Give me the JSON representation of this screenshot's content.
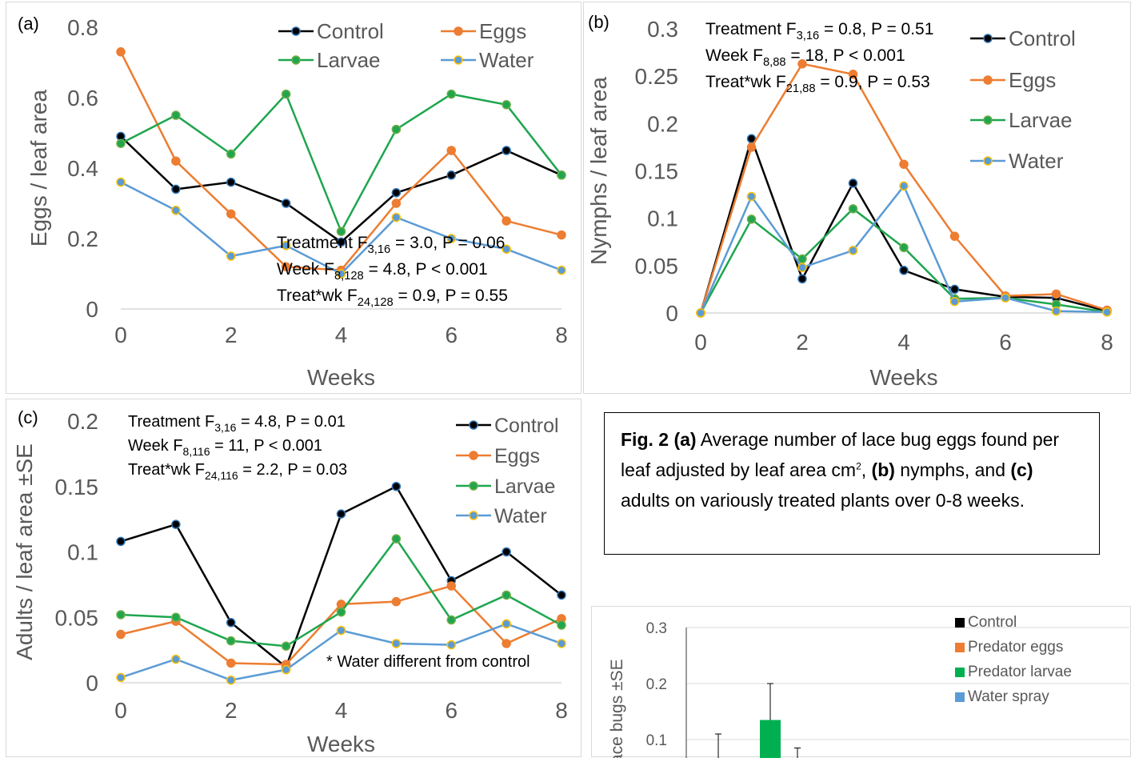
{
  "caption": {
    "fig_label": "Fig. 2",
    "a_label": "(a)",
    "text1": " Average number of lace bug eggs found per leaf adjusted by leaf area cm",
    "sup": "2",
    "text2": ", ",
    "b_label": "(b)",
    "text3": " nymphs, and ",
    "c_label": "(c)",
    "text4": " adults on variously treated plants over 0-8 weeks."
  },
  "colors": {
    "Control": "#000000",
    "Eggs": "#ed7d31",
    "Larvae": "#1fa64f",
    "Water": "#5b9bd5",
    "marker_stroke": {
      "Control": "#2e75b6",
      "Eggs": "#ed7d31",
      "Larvae": "#70ad47",
      "Water": "#ffc000"
    }
  },
  "chart_data": [
    {
      "id": "a",
      "type": "line",
      "panel_label": "(a)",
      "xlabel": "Weeks",
      "ylabel": "Eggs / leaf area",
      "x": [
        0,
        1,
        2,
        3,
        4,
        5,
        6,
        7,
        8
      ],
      "xticks": [
        "0",
        "2",
        "4",
        "6",
        "8"
      ],
      "yticks": [
        "0",
        "0.2",
        "0.4",
        "0.6",
        "0.8"
      ],
      "ylim": [
        0,
        0.8
      ],
      "legend": [
        "Control",
        "Eggs",
        "Larvae",
        "Water"
      ],
      "series": [
        {
          "name": "Control",
          "values": [
            0.49,
            0.34,
            0.36,
            0.3,
            0.19,
            0.33,
            0.38,
            0.45,
            0.38
          ]
        },
        {
          "name": "Eggs",
          "values": [
            0.73,
            0.42,
            0.27,
            0.12,
            0.11,
            0.3,
            0.45,
            0.25,
            0.21
          ]
        },
        {
          "name": "Larvae",
          "values": [
            0.47,
            0.55,
            0.44,
            0.61,
            0.22,
            0.51,
            0.61,
            0.58,
            0.38
          ]
        },
        {
          "name": "Water",
          "values": [
            0.36,
            0.28,
            0.15,
            0.18,
            0.1,
            0.26,
            0.2,
            0.17,
            0.11
          ]
        }
      ],
      "annotations": [
        {
          "pre": "Treatment F",
          "sub": "3,16",
          "post": " = 3.0, P = 0.06"
        },
        {
          "pre": "Week F",
          "sub": "8,128",
          "post": " = 4.8, P < 0.001"
        },
        {
          "pre": "Treat*wk F",
          "sub": "24,128",
          "post": " = 0.9, P = 0.55"
        }
      ]
    },
    {
      "id": "b",
      "type": "line",
      "panel_label": "(b)",
      "xlabel": "Weeks",
      "ylabel": "Nymphs / leaf area",
      "x": [
        0,
        1,
        2,
        3,
        4,
        5,
        6,
        7,
        8
      ],
      "xticks": [
        "0",
        "2",
        "4",
        "6",
        "8"
      ],
      "yticks": [
        "0",
        "0.05",
        "0.1",
        "0.15",
        "0.2",
        "0.25",
        "0.3"
      ],
      "ylim": [
        0,
        0.3
      ],
      "legend": [
        "Control",
        "Eggs",
        "Larvae",
        "Water"
      ],
      "series": [
        {
          "name": "Control",
          "values": [
            0,
            0.184,
            0.036,
            0.137,
            0.045,
            0.025,
            0.017,
            0.016,
            0.002
          ]
        },
        {
          "name": "Eggs",
          "values": [
            0,
            0.175,
            0.263,
            0.252,
            0.157,
            0.081,
            0.018,
            0.02,
            0.003
          ]
        },
        {
          "name": "Larvae",
          "values": [
            0,
            0.099,
            0.057,
            0.11,
            0.069,
            0.015,
            0.016,
            0.009,
            0.001
          ]
        },
        {
          "name": "Water",
          "values": [
            0,
            0.123,
            0.048,
            0.066,
            0.134,
            0.012,
            0.016,
            0.002,
            0.001
          ]
        }
      ],
      "annotations": [
        {
          "pre": "Treatment F",
          "sub": "3,16",
          "post": " = 0.8, P = 0.51"
        },
        {
          "pre": "Week F",
          "sub": "8,88",
          "post": " = 18, P < 0.001"
        },
        {
          "pre": "Treat*wk F",
          "sub": "21,88",
          "post": " = 0.9, P = 0.53"
        }
      ]
    },
    {
      "id": "c",
      "type": "line",
      "panel_label": "(c)",
      "xlabel": "Weeks",
      "ylabel": "Adults / leaf area ±SE",
      "x": [
        0,
        1,
        2,
        3,
        4,
        5,
        6,
        7,
        8
      ],
      "xticks": [
        "0",
        "2",
        "4",
        "6",
        "8"
      ],
      "yticks": [
        "0",
        "0.05",
        "0.1",
        "0.15",
        "0.2"
      ],
      "ylim": [
        0,
        0.2
      ],
      "legend": [
        "Control",
        "Eggs",
        "Larvae",
        "Water"
      ],
      "series": [
        {
          "name": "Control",
          "values": [
            0.108,
            0.121,
            0.046,
            0.012,
            0.129,
            0.15,
            0.078,
            0.1,
            0.067
          ]
        },
        {
          "name": "Eggs",
          "values": [
            0.037,
            0.047,
            0.015,
            0.014,
            0.06,
            0.062,
            0.074,
            0.03,
            0.049
          ]
        },
        {
          "name": "Larvae",
          "values": [
            0.052,
            0.05,
            0.032,
            0.028,
            0.054,
            0.11,
            0.048,
            0.067,
            0.044
          ]
        },
        {
          "name": "Water",
          "values": [
            0.004,
            0.018,
            0.002,
            0.01,
            0.04,
            0.03,
            0.029,
            0.045,
            0.03
          ]
        }
      ],
      "annotations": [
        {
          "pre": "Treatment F",
          "sub": "3,16",
          "post": " = 4.8, P = 0.01"
        },
        {
          "pre": "Week F",
          "sub": "8,116",
          "post": " = 11, P < 0.001"
        },
        {
          "pre": "Treat*wk F",
          "sub": "24,116",
          "post": " = 2.2, P = 0.03"
        }
      ],
      "note": "* Water different from control"
    },
    {
      "id": "d",
      "type": "bar",
      "ylabel": "ace bugs ±SE",
      "yticks": [
        "0.1",
        "0.2",
        "0.3"
      ],
      "ylim": [
        0,
        0.3
      ],
      "legend": [
        "Control",
        "Predator eggs",
        "Predator larvae",
        "Water spray"
      ],
      "legend_colors": [
        "#000000",
        "#ed7d31",
        "#00b050",
        "#5b9bd5"
      ],
      "bars": [
        {
          "series": "Predator larvae",
          "value": 0.135,
          "err_hi": 0.2
        }
      ],
      "error_bars": [
        {
          "series": "Control",
          "err_hi": 0.11
        },
        {
          "series": "Water spray",
          "err_hi": 0.085
        }
      ]
    }
  ]
}
